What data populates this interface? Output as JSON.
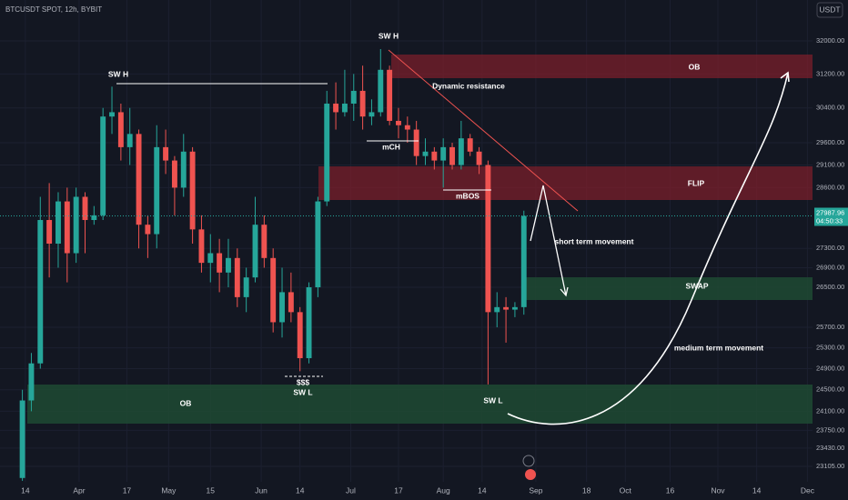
{
  "chart_data": {
    "type": "candlestick",
    "title": "BTCUSDT SPOT, 12h, BYBIT",
    "currency": "USDT",
    "log_scale": true,
    "up_color": "#26a69a",
    "down_color": "#ef5350",
    "x": [
      -1,
      2,
      5,
      8,
      11,
      14,
      17,
      20,
      23,
      26,
      29,
      32,
      35,
      38,
      41,
      44,
      47,
      50,
      53,
      56,
      59,
      62,
      65,
      68,
      71,
      74,
      77,
      80,
      83,
      86,
      89,
      92,
      95,
      98,
      101,
      104,
      107,
      110,
      113,
      116,
      119,
      122,
      125,
      128,
      131,
      134,
      137,
      140,
      143,
      146,
      149,
      152,
      155,
      158,
      161,
      164,
      167
    ],
    "open": [
      22900,
      24300,
      25000,
      27900,
      27400,
      28300,
      27200,
      28400,
      27900,
      28000,
      30200,
      30300,
      29500,
      29800,
      27800,
      27600,
      29500,
      29200,
      28600,
      29400,
      27700,
      27000,
      27200,
      26800,
      27100,
      26300,
      26700,
      27800,
      27100,
      25800,
      26400,
      26000,
      25100,
      26500,
      28300,
      30500,
      30300,
      30500,
      30800,
      30200,
      30300,
      31300,
      30100,
      30000,
      29900,
      29300,
      29400,
      29200,
      29500,
      29100,
      29700,
      29400,
      29100,
      26000,
      26100,
      26050,
      26100
    ],
    "high": [
      24500,
      25200,
      28400,
      28700,
      28500,
      28600,
      28600,
      28500,
      28200,
      30400,
      30900,
      30500,
      30400,
      29900,
      28000,
      30000,
      29900,
      29300,
      29800,
      29500,
      28000,
      27600,
      27500,
      27500,
      27300,
      26900,
      28400,
      28000,
      27300,
      26900,
      26800,
      26100,
      26600,
      28400,
      30800,
      31000,
      31300,
      31200,
      31400,
      30600,
      31800,
      31400,
      30400,
      30200,
      30100,
      29700,
      29500,
      29700,
      29600,
      30100,
      29800,
      29500,
      29200,
      26400,
      26300,
      26200,
      28100
    ],
    "low": [
      22850,
      24100,
      24900,
      26700,
      26900,
      26600,
      27000,
      27200,
      27800,
      27900,
      29800,
      29200,
      29100,
      27300,
      27100,
      27300,
      28900,
      28000,
      28400,
      27400,
      26800,
      26600,
      26400,
      26500,
      26100,
      26000,
      26600,
      26900,
      25600,
      25500,
      25800,
      24850,
      25000,
      26300,
      28200,
      29900,
      30200,
      30100,
      29900,
      30000,
      30200,
      30000,
      29700,
      29600,
      29100,
      29100,
      29000,
      28600,
      29000,
      29000,
      29300,
      28900,
      24600,
      25700,
      25400,
      25900,
      25950
    ],
    "close": [
      24300,
      25000,
      27900,
      27400,
      28300,
      27200,
      28400,
      27900,
      28000,
      30200,
      30300,
      29500,
      29800,
      27800,
      27600,
      29500,
      29200,
      28600,
      29400,
      27700,
      27000,
      27200,
      26800,
      27100,
      26300,
      26700,
      27800,
      27100,
      25800,
      26400,
      26000,
      25100,
      26500,
      28300,
      30500,
      30300,
      30500,
      30800,
      30200,
      30300,
      31300,
      30100,
      30000,
      29900,
      29300,
      29400,
      29200,
      29500,
      29100,
      29700,
      29400,
      29100,
      26000,
      26100,
      26050,
      26100,
      27988
    ],
    "last_price": 27987.96,
    "countdown": "04:50:33",
    "ylim": [
      22833,
      33018
    ],
    "yticks": [
      {
        "value": 32000,
        "label": "32000.00"
      },
      {
        "value": 31200,
        "label": "31200.00"
      },
      {
        "value": 30400,
        "label": "30400.00"
      },
      {
        "value": 29600,
        "label": "29600.00"
      },
      {
        "value": 29100,
        "label": "29100.00"
      },
      {
        "value": 28600,
        "label": "28600.00"
      },
      {
        "value": 27300,
        "label": "27300.00"
      },
      {
        "value": 26900,
        "label": "26900.00"
      },
      {
        "value": 26500,
        "label": "26500.00"
      },
      {
        "value": 25700,
        "label": "25700.00"
      },
      {
        "value": 25300,
        "label": "25300.00"
      },
      {
        "value": 24900,
        "label": "24900.00"
      },
      {
        "value": 24500,
        "label": "24500.00"
      },
      {
        "value": 24100,
        "label": "24100.00"
      },
      {
        "value": 23750,
        "label": "23750.00"
      },
      {
        "value": 23430,
        "label": "23430.00"
      },
      {
        "value": 23105,
        "label": "23105.00"
      }
    ],
    "xlim": [
      -8.5,
      263.7
    ],
    "xticks": [
      {
        "value": 0,
        "label": "14"
      },
      {
        "value": 18,
        "label": "Apr"
      },
      {
        "value": 34,
        "label": "17"
      },
      {
        "value": 48,
        "label": "May"
      },
      {
        "value": 62,
        "label": "15"
      },
      {
        "value": 79,
        "label": "Jun"
      },
      {
        "value": 92,
        "label": "14"
      },
      {
        "value": 109,
        "label": "Jul"
      },
      {
        "value": 125,
        "label": "17"
      },
      {
        "value": 140,
        "label": "Aug"
      },
      {
        "value": 153,
        "label": "14"
      },
      {
        "value": 171,
        "label": "Sep"
      },
      {
        "value": 188,
        "label": "18"
      },
      {
        "value": 201,
        "label": "Oct"
      },
      {
        "value": 216,
        "label": "16"
      },
      {
        "value": 232,
        "label": "Nov"
      },
      {
        "value": 245,
        "label": "14"
      },
      {
        "value": 262,
        "label": "Dec"
      }
    ],
    "grid": true,
    "annotations": {
      "sw_h_left": "SW H",
      "sw_h_top": "SW H",
      "dynamic_resistance": "Dynamic resistance",
      "ob_top": "OB",
      "mch": "mCH",
      "flip": "FLIP",
      "mbos": "mBOS",
      "short_term": "short term movement",
      "swap": "SWAP",
      "medium_term": "medium term movement",
      "liquidity": "$$$",
      "sw_l_left": "SW L",
      "sw_l_right": "SW L",
      "ob_bottom": "OB"
    }
  }
}
